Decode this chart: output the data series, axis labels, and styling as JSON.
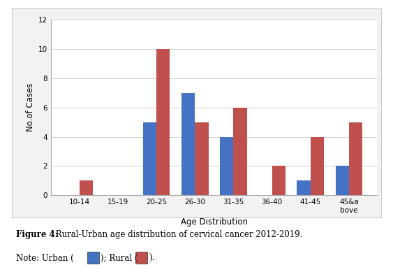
{
  "categories": [
    "10-14",
    "15-19",
    "20-25",
    "26-30",
    "31-35",
    "36-40",
    "41-45",
    "45&a\nbove"
  ],
  "urban": [
    0,
    0,
    5,
    7,
    4,
    0,
    1,
    2
  ],
  "rural": [
    1,
    0,
    10,
    5,
    6,
    2,
    4,
    5
  ],
  "urban_color": "#4472C4",
  "rural_color": "#C0504D",
  "xlabel": "Age Distribution",
  "ylabel": "No.of Cases",
  "ylim": [
    0,
    12
  ],
  "yticks": [
    0,
    2,
    4,
    6,
    8,
    10,
    12
  ],
  "bar_width": 0.35,
  "fig_bg": "#ffffff",
  "plot_bg": "#ffffff",
  "box_bg": "#f2f2f2",
  "grid_color": "#d0d0d0",
  "spine_color": "#aaaaaa"
}
